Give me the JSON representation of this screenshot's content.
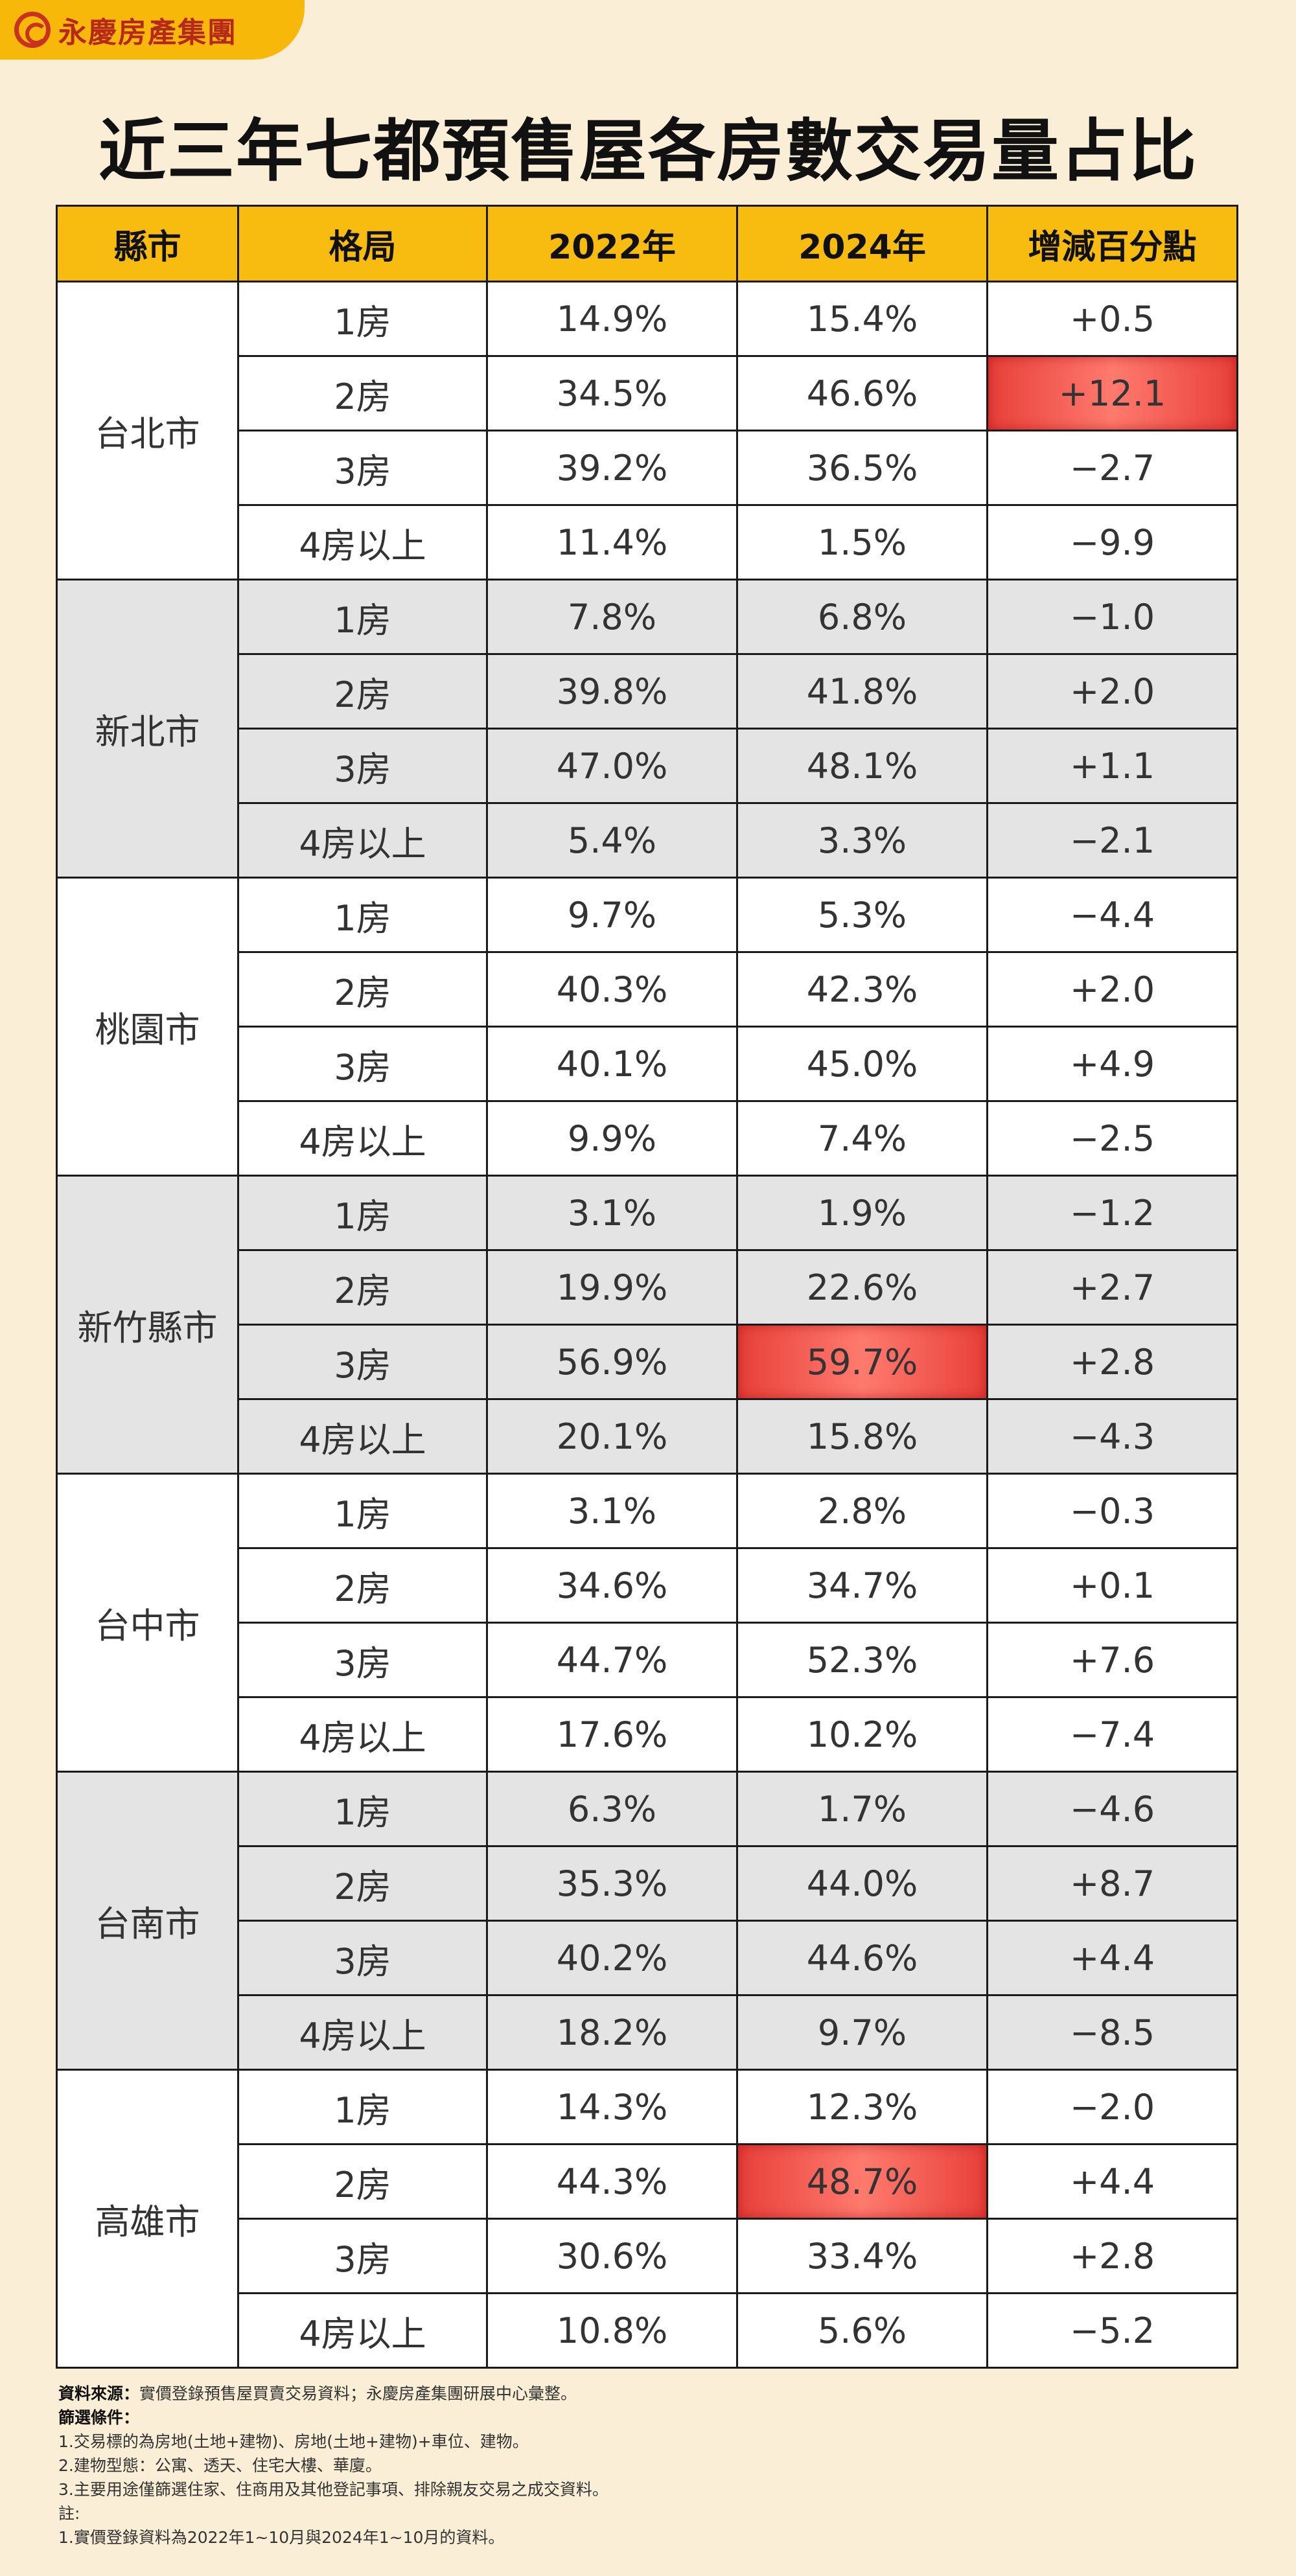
{
  "brand": {
    "name": "永慶房產集團",
    "logo_icon": "yongqing-logo-icon"
  },
  "title": "近三年七都預售屋各房數交易量占比",
  "table": {
    "headers": [
      "縣市",
      "格局",
      "2022年",
      "2024年",
      "增減百分點"
    ],
    "groups": [
      {
        "city": "台北市",
        "shade": "white",
        "rows": [
          {
            "room": "1房",
            "y2022": "14.9%",
            "y2024": "15.4%",
            "diff": "+0.5"
          },
          {
            "room": "2房",
            "y2022": "34.5%",
            "y2024": "46.6%",
            "diff": "+12.1"
          },
          {
            "room": "3房",
            "y2022": "39.2%",
            "y2024": "36.5%",
            "diff": "−2.7"
          },
          {
            "room": "4房以上",
            "y2022": "11.4%",
            "y2024": "1.5%",
            "diff": "−9.9"
          }
        ]
      },
      {
        "city": "新北市",
        "shade": "gray",
        "rows": [
          {
            "room": "1房",
            "y2022": "7.8%",
            "y2024": "6.8%",
            "diff": "−1.0"
          },
          {
            "room": "2房",
            "y2022": "39.8%",
            "y2024": "41.8%",
            "diff": "+2.0"
          },
          {
            "room": "3房",
            "y2022": "47.0%",
            "y2024": "48.1%",
            "diff": "+1.1"
          },
          {
            "room": "4房以上",
            "y2022": "5.4%",
            "y2024": "3.3%",
            "diff": "−2.1"
          }
        ]
      },
      {
        "city": "桃園市",
        "shade": "white",
        "rows": [
          {
            "room": "1房",
            "y2022": "9.7%",
            "y2024": "5.3%",
            "diff": "−4.4"
          },
          {
            "room": "2房",
            "y2022": "40.3%",
            "y2024": "42.3%",
            "diff": "+2.0"
          },
          {
            "room": "3房",
            "y2022": "40.1%",
            "y2024": "45.0%",
            "diff": "+4.9"
          },
          {
            "room": "4房以上",
            "y2022": "9.9%",
            "y2024": "7.4%",
            "diff": "−2.5"
          }
        ]
      },
      {
        "city": "新竹縣市",
        "shade": "gray",
        "rows": [
          {
            "room": "1房",
            "y2022": "3.1%",
            "y2024": "1.9%",
            "diff": "−1.2"
          },
          {
            "room": "2房",
            "y2022": "19.9%",
            "y2024": "22.6%",
            "diff": "+2.7"
          },
          {
            "room": "3房",
            "y2022": "56.9%",
            "y2024": "59.7%",
            "diff": "+2.8"
          },
          {
            "room": "4房以上",
            "y2022": "20.1%",
            "y2024": "15.8%",
            "diff": "−4.3"
          }
        ]
      },
      {
        "city": "台中市",
        "shade": "white",
        "rows": [
          {
            "room": "1房",
            "y2022": "3.1%",
            "y2024": "2.8%",
            "diff": "−0.3"
          },
          {
            "room": "2房",
            "y2022": "34.6%",
            "y2024": "34.7%",
            "diff": "+0.1"
          },
          {
            "room": "3房",
            "y2022": "44.7%",
            "y2024": "52.3%",
            "diff": "+7.6"
          },
          {
            "room": "4房以上",
            "y2022": "17.6%",
            "y2024": "10.2%",
            "diff": "−7.4"
          }
        ]
      },
      {
        "city": "台南市",
        "shade": "gray",
        "rows": [
          {
            "room": "1房",
            "y2022": "6.3%",
            "y2024": "1.7%",
            "diff": "−4.6"
          },
          {
            "room": "2房",
            "y2022": "35.3%",
            "y2024": "44.0%",
            "diff": "+8.7"
          },
          {
            "room": "3房",
            "y2022": "40.2%",
            "y2024": "44.6%",
            "diff": "+4.4"
          },
          {
            "room": "4房以上",
            "y2022": "18.2%",
            "y2024": "9.7%",
            "diff": "−8.5"
          }
        ]
      },
      {
        "city": "高雄市",
        "shade": "white",
        "rows": [
          {
            "room": "1房",
            "y2022": "14.3%",
            "y2024": "12.3%",
            "diff": "−2.0"
          },
          {
            "room": "2房",
            "y2022": "44.3%",
            "y2024": "48.7%",
            "diff": "+4.4"
          },
          {
            "room": "3房",
            "y2022": "30.6%",
            "y2024": "33.4%",
            "diff": "+2.8"
          },
          {
            "room": "4房以上",
            "y2022": "10.8%",
            "y2024": "5.6%",
            "diff": "−5.2"
          }
        ]
      }
    ],
    "highlights": [
      {
        "group": 0,
        "row": 1,
        "col": "diff"
      },
      {
        "group": 3,
        "row": 2,
        "col": "y2024"
      },
      {
        "group": 6,
        "row": 1,
        "col": "y2024"
      }
    ],
    "highlight_color": "#e8403a",
    "header_color": "#f7bc0f"
  },
  "notes": {
    "source_label": "資料來源：",
    "source_text": "實價登錄預售屋買賣交易資料；永慶房產集團研展中心彙整。",
    "filter_label": "篩選條件：",
    "filters": [
      "1.交易標的為房地(土地+建物)、房地(土地+建物)+車位、建物。",
      "2.建物型態：公寓、透天、住宅大樓、華廈。",
      "3.主要用途僅篩選住家、住商用及其他登記事項、排除親友交易之成交資料。"
    ],
    "remark_label": "註:",
    "remarks": [
      "1.實價登錄資料為2022年1~10月與2024年1~10月的資料。"
    ]
  }
}
